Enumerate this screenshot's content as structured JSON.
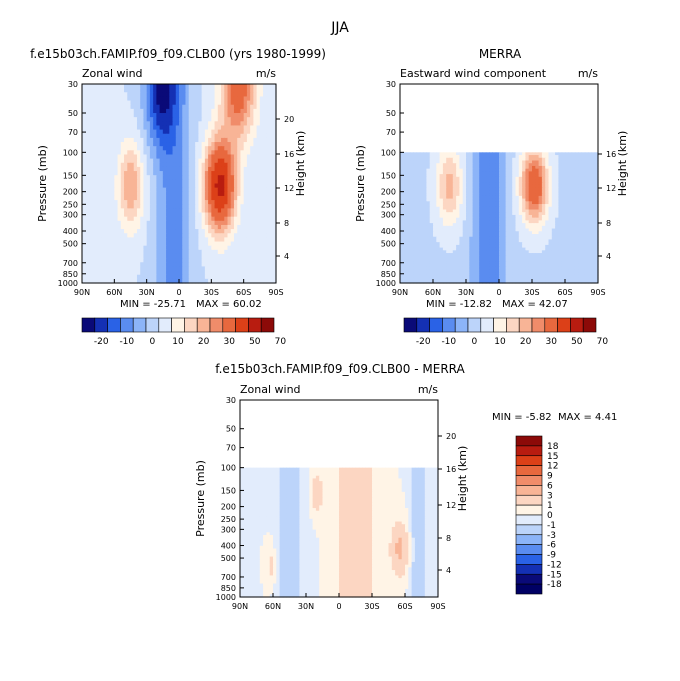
{
  "figure_title": "JJA",
  "chart_data": [
    {
      "type": "heatmap",
      "id": "model",
      "title": "f.e15b03ch.FAMIP.f09_f09.CLB00 (yrs 1980-1999)",
      "variable": "Zonal wind",
      "units": "m/s",
      "ylabel": "Pressure (mb)",
      "ylabel_right": "Height (km)",
      "x_ticks": [
        "90N",
        "60N",
        "30N",
        "0",
        "30S",
        "60S",
        "90S"
      ],
      "y_ticks": [
        "30",
        "50",
        "70",
        "100",
        "150",
        "200",
        "250",
        "300",
        "400",
        "500",
        "700",
        "850",
        "1000"
      ],
      "height_ticks": [
        "4",
        "8",
        "12",
        "16",
        "20"
      ],
      "x_range": [
        90,
        -90
      ],
      "p_range": [
        30,
        1000
      ],
      "min_label": "MIN = -25.71",
      "max_label": "MAX =  60.02",
      "min": -25.71,
      "max": 60.02
    },
    {
      "type": "heatmap",
      "id": "merra",
      "title": "MERRA",
      "variable": "Eastward wind component",
      "units": "m/s",
      "ylabel": "Pressure (mb)",
      "ylabel_right": "Height (km)",
      "x_ticks": [
        "90N",
        "60N",
        "30N",
        "0",
        "30S",
        "60S",
        "90S"
      ],
      "y_ticks": [
        "30",
        "50",
        "70",
        "100",
        "150",
        "200",
        "250",
        "300",
        "400",
        "500",
        "700",
        "850",
        "1000"
      ],
      "height_ticks": [
        "4",
        "8",
        "12",
        "16"
      ],
      "x_range": [
        90,
        -90
      ],
      "p_range": [
        30,
        1000
      ],
      "data_top_p": 100,
      "min_label": "MIN = -12.82",
      "max_label": "MAX =  42.07",
      "min": -12.82,
      "max": 42.07
    },
    {
      "type": "heatmap",
      "id": "diff",
      "title": "f.e15b03ch.FAMIP.f09_f09.CLB00 - MERRA",
      "variable": "Zonal wind",
      "units": "m/s",
      "ylabel": "Pressure (mb)",
      "ylabel_right": "Height (km)",
      "x_ticks": [
        "90N",
        "60N",
        "30N",
        "0",
        "30S",
        "60S",
        "90S"
      ],
      "y_ticks": [
        "30",
        "50",
        "70",
        "100",
        "150",
        "200",
        "250",
        "300",
        "400",
        "500",
        "700",
        "850",
        "1000"
      ],
      "height_ticks": [
        "4",
        "8",
        "12",
        "16",
        "20"
      ],
      "x_range": [
        90,
        -90
      ],
      "p_range": [
        30,
        1000
      ],
      "data_top_p": 100,
      "min_label": "MIN =  -5.82",
      "max_label": "MAX =   4.41",
      "min": -5.82,
      "max": 4.41
    }
  ],
  "colorbar_main": {
    "labels": [
      "-20",
      "-10",
      "0",
      "10",
      "20",
      "30",
      "50",
      "70"
    ],
    "colors": [
      "#0a0a78",
      "#1430b4",
      "#2a62e6",
      "#5a8cf0",
      "#8cb4f8",
      "#bcd4fa",
      "#e2ecfc",
      "#fff4e6",
      "#fcd6c2",
      "#f8b496",
      "#f08c6a",
      "#e8683e",
      "#dc4018",
      "#b81c10",
      "#8c0a08"
    ]
  },
  "colorbar_diff": {
    "labels": [
      "18",
      "15",
      "12",
      "9",
      "6",
      "3",
      "1",
      "0",
      "-1",
      "-3",
      "-6",
      "-9",
      "-12",
      "-15",
      "-18"
    ],
    "colors": [
      "#8c0a08",
      "#b81c10",
      "#dc4018",
      "#e8683e",
      "#f08c6a",
      "#f8b496",
      "#fcd6c2",
      "#fff4e6",
      "#e2ecfc",
      "#bcd4fa",
      "#8cb4f8",
      "#5a8cf0",
      "#2a62e6",
      "#1430b4",
      "#0a0a78",
      "#000064"
    ]
  }
}
